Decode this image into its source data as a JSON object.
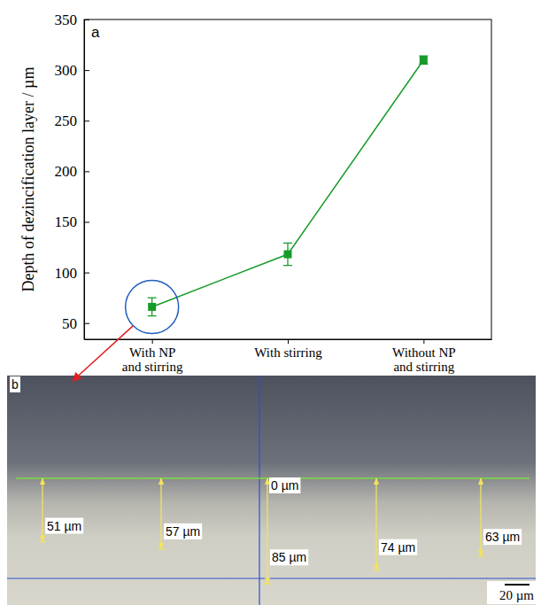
{
  "chart_data": {
    "type": "line",
    "annotations": [
      "a"
    ],
    "y_label": "Depth of dezincification layer / µm",
    "categories": [
      "With NP\nand stirring",
      "With stirring",
      "Without NP\nand stirring"
    ],
    "values": [
      66,
      118,
      310
    ],
    "errors": [
      9,
      11,
      4
    ],
    "color": "#169b2a",
    "marker": "square",
    "ylim": [
      34,
      350
    ],
    "yticks": [
      50,
      100,
      150,
      200,
      250,
      300,
      350
    ]
  },
  "micrograph": {
    "panel_label": "b",
    "reference": {
      "value": 0,
      "label": "0 µm"
    },
    "depths": [
      {
        "value": 51,
        "label": "51 µm"
      },
      {
        "value": 57,
        "label": "57 µm"
      },
      {
        "value": 85,
        "label": "85 µm"
      },
      {
        "value": 74,
        "label": "74 µm"
      },
      {
        "value": 63,
        "label": "63 µm"
      }
    ],
    "scale_bar": {
      "value": 20,
      "label": "20 µm"
    }
  }
}
